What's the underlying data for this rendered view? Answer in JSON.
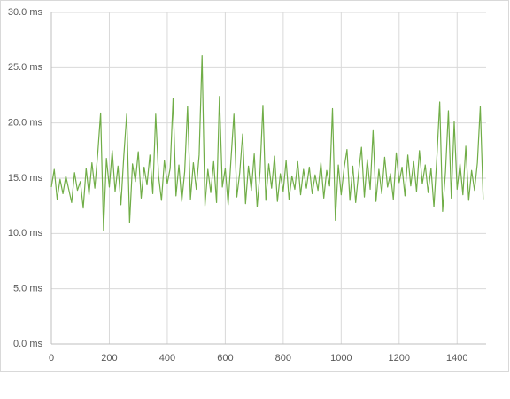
{
  "chart_data": {
    "type": "line",
    "x": [
      0,
      10,
      20,
      30,
      40,
      50,
      60,
      70,
      80,
      90,
      100,
      110,
      120,
      130,
      140,
      150,
      160,
      170,
      180,
      190,
      200,
      210,
      220,
      230,
      240,
      250,
      260,
      270,
      280,
      290,
      300,
      310,
      320,
      330,
      340,
      350,
      360,
      370,
      380,
      390,
      400,
      410,
      420,
      430,
      440,
      450,
      460,
      470,
      480,
      490,
      500,
      510,
      520,
      530,
      540,
      550,
      560,
      570,
      580,
      590,
      600,
      610,
      620,
      630,
      640,
      650,
      660,
      670,
      680,
      690,
      700,
      710,
      720,
      730,
      740,
      750,
      760,
      770,
      780,
      790,
      800,
      810,
      820,
      830,
      840,
      850,
      860,
      870,
      880,
      890,
      900,
      910,
      920,
      930,
      940,
      950,
      960,
      970,
      980,
      990,
      1000,
      1010,
      1020,
      1030,
      1040,
      1050,
      1060,
      1070,
      1080,
      1090,
      1100,
      1110,
      1120,
      1130,
      1140,
      1150,
      1160,
      1170,
      1180,
      1190,
      1200,
      1210,
      1220,
      1230,
      1240,
      1250,
      1260,
      1270,
      1280,
      1290,
      1300,
      1310,
      1320,
      1330,
      1340,
      1350,
      1360,
      1370,
      1380,
      1390,
      1400,
      1410,
      1420,
      1430,
      1440,
      1450,
      1460,
      1470,
      1480,
      1490
    ],
    "series": [
      {
        "color": "#70ad47",
        "values": [
          14.2,
          15.8,
          13.1,
          14.9,
          13.6,
          15.2,
          14.0,
          12.8,
          15.5,
          13.9,
          14.7,
          12.3,
          15.9,
          13.5,
          16.4,
          14.1,
          17.2,
          20.9,
          10.3,
          16.8,
          14.2,
          17.5,
          13.8,
          16.1,
          12.6,
          17.0,
          20.8,
          11.0,
          16.3,
          14.7,
          17.4,
          13.2,
          16.0,
          14.4,
          17.1,
          13.6,
          20.8,
          15.2,
          13.0,
          16.6,
          14.5,
          15.9,
          22.2,
          13.4,
          16.2,
          12.9,
          15.6,
          21.5,
          13.1,
          16.4,
          14.0,
          17.1,
          26.1,
          12.5,
          15.8,
          13.7,
          16.5,
          12.8,
          22.4,
          14.2,
          15.9,
          12.6,
          16.8,
          20.8,
          13.3,
          15.5,
          19.0,
          12.7,
          16.1,
          13.9,
          17.2,
          12.4,
          15.6,
          21.6,
          13.0,
          16.3,
          14.1,
          17.0,
          12.9,
          15.4,
          13.8,
          16.6,
          13.1,
          15.2,
          14.0,
          16.5,
          13.5,
          15.8,
          14.1,
          16.0,
          13.6,
          15.3,
          13.9,
          16.4,
          13.2,
          15.7,
          14.3,
          21.3,
          11.2,
          16.2,
          13.5,
          15.9,
          17.6,
          13.0,
          16.1,
          12.8,
          15.5,
          17.8,
          13.3,
          16.7,
          14.0,
          19.3,
          12.9,
          15.8,
          13.6,
          16.9,
          14.2,
          15.4,
          13.1,
          17.3,
          14.6,
          16.0,
          13.4,
          17.1,
          14.3,
          16.5,
          13.8,
          17.5,
          14.5,
          16.2,
          13.7,
          15.9,
          12.4,
          16.8,
          21.9,
          12.0,
          15.6,
          21.1,
          13.2,
          20.1,
          14.0,
          16.3,
          13.5,
          17.9,
          13.0,
          15.7,
          13.9,
          16.4,
          21.5,
          13.1
        ]
      }
    ],
    "xlim": [
      0,
      1500
    ],
    "xticks": [
      0,
      200,
      400,
      600,
      800,
      1000,
      1200,
      1400
    ],
    "ylim": [
      0,
      30
    ],
    "yticks": [
      {
        "value": 0,
        "label": "0.0 ms"
      },
      {
        "value": 5,
        "label": "5.0 ms"
      },
      {
        "value": 10,
        "label": "10.0 ms"
      },
      {
        "value": 15,
        "label": "15.0 ms"
      },
      {
        "value": 20,
        "label": "20.0 ms"
      },
      {
        "value": 25,
        "label": "25.0 ms"
      },
      {
        "value": 30,
        "label": "30.0 ms"
      }
    ],
    "grid": true
  }
}
